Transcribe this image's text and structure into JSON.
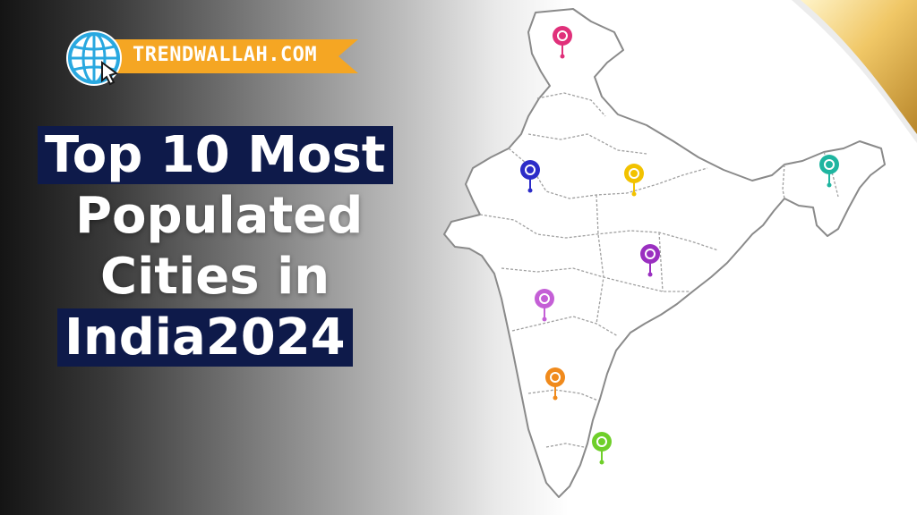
{
  "brand": {
    "site": "TRENDWALLAH.COM"
  },
  "headline": {
    "line1": "Top 10 Most",
    "line2": "Populated",
    "line3": "Cities in",
    "line4": "India2024"
  },
  "colors": {
    "ribbon": "#f5a623",
    "title_highlight": "#0e1a4a",
    "globe": "#29a8e0",
    "curl": "#e8b54a"
  },
  "pins": [
    {
      "name": "pin-north",
      "color": "#e0307a"
    },
    {
      "name": "pin-west",
      "color": "#2c2cc8"
    },
    {
      "name": "pin-north-central",
      "color": "#f2c200"
    },
    {
      "name": "pin-northeast",
      "color": "#1fb5a0"
    },
    {
      "name": "pin-central",
      "color": "#9a2fc0"
    },
    {
      "name": "pin-west-central",
      "color": "#c45fd6"
    },
    {
      "name": "pin-southwest",
      "color": "#f08a1c"
    },
    {
      "name": "pin-south",
      "color": "#6fcf2a"
    }
  ]
}
